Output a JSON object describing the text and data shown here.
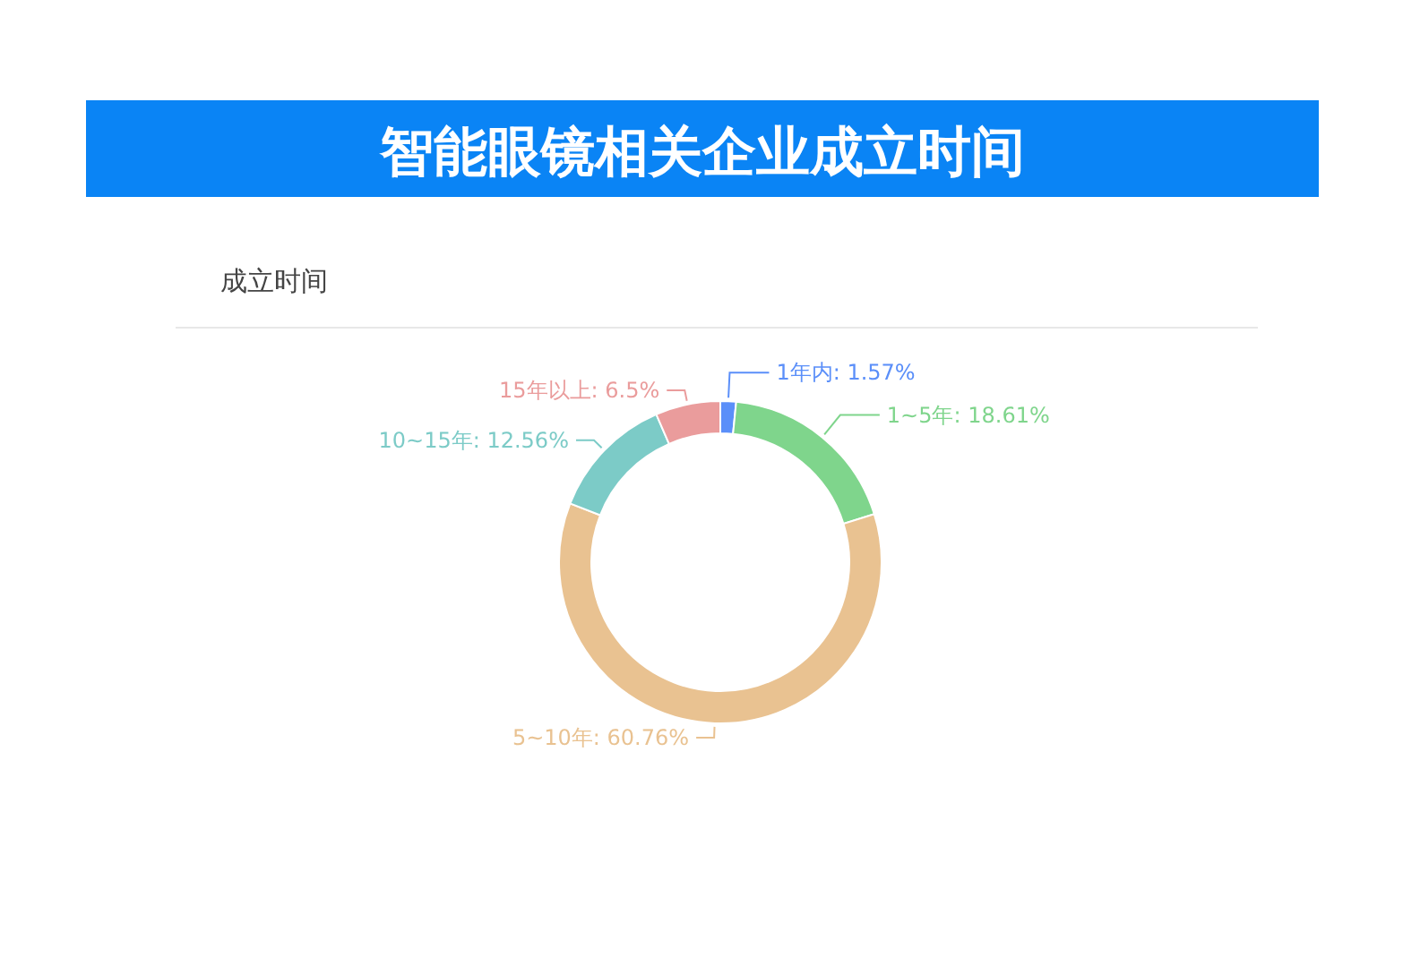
{
  "chart_data": {
    "type": "donut",
    "title": "智能眼镜相关企业成立时间",
    "subtitle": "成立时间",
    "categories": [
      "1年内",
      "1~5年",
      "5~10年",
      "10~15年",
      "15年以上"
    ],
    "values": [
      1.57,
      18.61,
      60.76,
      12.56,
      6.5
    ],
    "colors": [
      "#5b8ff9",
      "#7fd58c",
      "#e9c291",
      "#7ccbc7",
      "#ea9c9c"
    ],
    "value_labels": [
      ": 1.57%",
      ": 18.61%",
      ": 60.76%",
      ": 12.56%",
      ": 6.5%"
    ]
  }
}
